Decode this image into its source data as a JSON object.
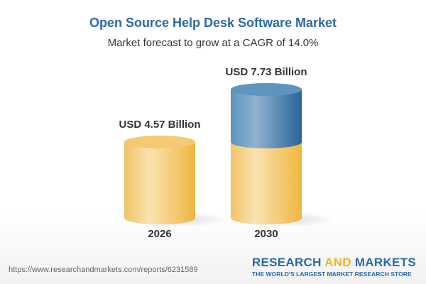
{
  "title": "Open Source Help Desk Software Market",
  "subtitle": "Market forecast to grow at a CAGR of 14.0%",
  "chart_data": {
    "type": "bar",
    "style": "3d-cylinder",
    "categories": [
      "2026",
      "2030"
    ],
    "values": [
      4.57,
      7.73
    ],
    "data_labels": [
      "USD 4.57 Billion",
      "USD 7.73 Billion"
    ],
    "unit": "USD Billion",
    "colors": {
      "base": "#f3c35a",
      "growth": "#3f7bb0"
    }
  },
  "footer": {
    "url": "https://www.researchandmarkets.com/reports/6231589",
    "logo_part1": "RESEARCH ",
    "logo_part2": "AND",
    "logo_part3": " MARKETS",
    "tagline": "THE WORLD'S LARGEST MARKET RESEARCH STORE"
  }
}
